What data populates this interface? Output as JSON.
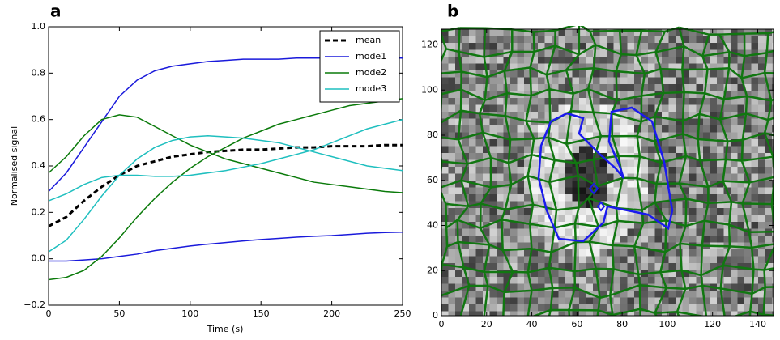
{
  "chart_data": [
    {
      "type": "line",
      "panel_label": "a",
      "xlabel": "Time (s)",
      "ylabel": "Normalised signal",
      "x": [
        0,
        12.5,
        25,
        37.5,
        50,
        62.5,
        75,
        87.5,
        100,
        112.5,
        125,
        137.5,
        150,
        162.5,
        175,
        187.5,
        200,
        212.5,
        225,
        237.5,
        250
      ],
      "xlim": [
        0,
        250
      ],
      "xticks": [
        0,
        50,
        100,
        150,
        200,
        250
      ],
      "ylim": [
        -0.2,
        1.0
      ],
      "yticks": [
        {
          "value": -0.2,
          "label": "−0.2"
        },
        {
          "value": 0,
          "label": "0.0"
        },
        0.2,
        0.4,
        0.6,
        0.8,
        {
          "value": 1.0,
          "label": "1.0"
        }
      ],
      "legend": "upper right",
      "series": [
        {
          "name": "mean",
          "color": "#000000",
          "dashed": true,
          "values": [
            0.14,
            0.18,
            0.25,
            0.31,
            0.36,
            0.4,
            0.42,
            0.44,
            0.45,
            0.46,
            0.465,
            0.47,
            0.47,
            0.475,
            0.48,
            0.48,
            0.485,
            0.485,
            0.485,
            0.49,
            0.49
          ]
        },
        {
          "name": "mode1",
          "color": "#1a1adb",
          "values": [
            0.29,
            0.37,
            0.48,
            0.59,
            0.7,
            0.77,
            0.81,
            0.83,
            0.84,
            0.85,
            0.855,
            0.86,
            0.86,
            0.86,
            0.865,
            0.865,
            0.865,
            0.865,
            0.865,
            0.865,
            0.865
          ],
          "values2": [
            -0.01,
            -0.01,
            -0.005,
            0.0,
            0.01,
            0.02,
            0.035,
            0.045,
            0.055,
            0.063,
            0.07,
            0.077,
            0.083,
            0.088,
            0.093,
            0.097,
            0.1,
            0.105,
            0.11,
            0.113,
            0.115
          ]
        },
        {
          "name": "mode2",
          "color": "#0a7a0a",
          "values": [
            0.37,
            0.44,
            0.53,
            0.6,
            0.62,
            0.61,
            0.57,
            0.53,
            0.49,
            0.46,
            0.43,
            0.41,
            0.39,
            0.37,
            0.35,
            0.33,
            0.32,
            0.31,
            0.3,
            0.29,
            0.285
          ],
          "values2": [
            -0.09,
            -0.08,
            -0.05,
            0.01,
            0.09,
            0.18,
            0.26,
            0.33,
            0.39,
            0.44,
            0.48,
            0.52,
            0.55,
            0.58,
            0.6,
            0.62,
            0.64,
            0.66,
            0.67,
            0.68,
            0.69
          ]
        },
        {
          "name": "mode3",
          "color": "#1fbfbf",
          "values": [
            0.25,
            0.28,
            0.32,
            0.35,
            0.36,
            0.36,
            0.355,
            0.355,
            0.36,
            0.37,
            0.38,
            0.395,
            0.41,
            0.43,
            0.45,
            0.47,
            0.5,
            0.53,
            0.56,
            0.58,
            0.6
          ],
          "values2": [
            0.03,
            0.08,
            0.17,
            0.27,
            0.36,
            0.43,
            0.48,
            0.51,
            0.525,
            0.53,
            0.525,
            0.52,
            0.51,
            0.5,
            0.48,
            0.46,
            0.44,
            0.42,
            0.4,
            0.39,
            0.38
          ]
        }
      ]
    },
    {
      "type": "image",
      "panel_label": "b",
      "xlim": [
        0,
        147
      ],
      "xticks": [
        0,
        20,
        40,
        60,
        80,
        100,
        120,
        140
      ],
      "ylim": [
        0,
        127
      ],
      "yticks": [
        0,
        20,
        40,
        60,
        80,
        100,
        120
      ]
    }
  ]
}
